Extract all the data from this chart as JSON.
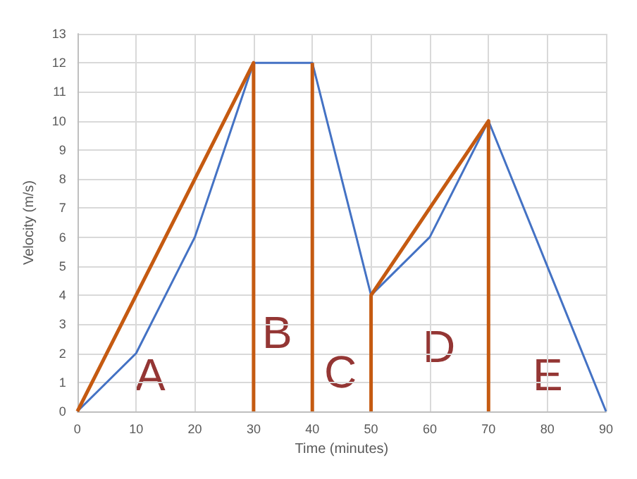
{
  "chart_data": {
    "type": "line",
    "xlabel": "Time (minutes)",
    "ylabel": "Velocity (m/s)",
    "xlim": [
      0,
      90
    ],
    "xticks": [
      0,
      10,
      20,
      30,
      40,
      50,
      60,
      70,
      80,
      90
    ],
    "ylim": [
      0,
      13
    ],
    "yticks": [
      0,
      1,
      2,
      3,
      4,
      5,
      6,
      7,
      8,
      9,
      10,
      11,
      12,
      13
    ],
    "grid": true,
    "marker": "none",
    "line_style": "solid",
    "series": [
      {
        "color": "#4472c4",
        "x": [
          0,
          10,
          20,
          30,
          40,
          50,
          60,
          70,
          80,
          90
        ],
        "values": [
          0,
          2,
          6,
          12,
          12,
          4,
          6,
          10,
          5,
          0
        ]
      },
      {
        "color": "#c55a11",
        "x": [
          0,
          30,
          30,
          35,
          40,
          40,
          45,
          50,
          50,
          70,
          70
        ],
        "values": [
          0,
          12,
          0,
          null,
          0,
          12,
          null,
          0,
          4,
          10,
          0
        ]
      }
    ],
    "annotations": [
      "A",
      "B",
      "C",
      "D",
      "E"
    ]
  }
}
